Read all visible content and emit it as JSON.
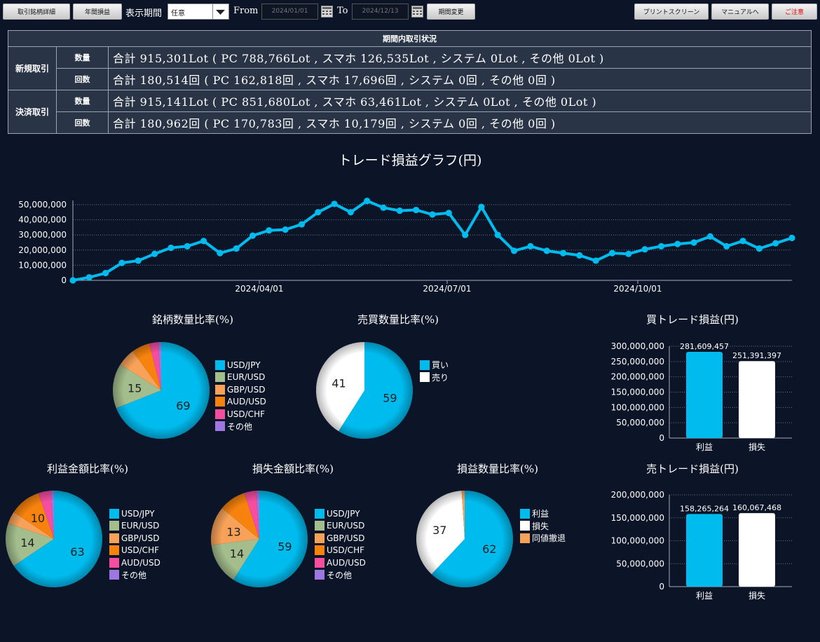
{
  "toolbar": {
    "detail_button": "取引銘柄詳細",
    "annual_button": "年間損益",
    "period_label": "表示期間",
    "period_select": "任意",
    "from_label": "From",
    "from_date": "2024/01/01",
    "to_label": "To",
    "to_date": "2024/12/13",
    "change_button": "期間変更",
    "print_button": "プリントスクリーン",
    "manual_button": "マニュアルへ",
    "notice_button": "ご注意"
  },
  "summary": {
    "title": "期間内取引状況",
    "rows": [
      {
        "group": "新規取引",
        "sub": "数量",
        "text": "合計 915,301Lot ( PC 788,766Lot , スマホ 126,535Lot , システム 0Lot , その他 0Lot )"
      },
      {
        "group": "新規取引",
        "sub": "回数",
        "text": "合計 180,514回 ( PC 162,818回 , スマホ 17,696回 , システム 0回 , その他 0回 )"
      },
      {
        "group": "決済取引",
        "sub": "数量",
        "text": "合計 915,141Lot ( PC 851,680Lot , スマホ 63,461Lot , システム 0Lot , その他 0Lot )"
      },
      {
        "group": "決済取引",
        "sub": "回数",
        "text": "合計 180,962回 ( PC 170,783回 , スマホ 10,179回 , システム 0回 , その他 0回 )"
      }
    ]
  },
  "colors": {
    "cyan": "#00bbee",
    "green": "#a3bd8c",
    "orange": "#f7a258",
    "darkorange": "#f7830e",
    "pink": "#f54ea0",
    "purple": "#9f77e0",
    "white": "#ffffff"
  },
  "chart_data": [
    {
      "id": "line",
      "type": "line",
      "title": "トレード損益グラフ(円)",
      "ylim": [
        0,
        50000000
      ],
      "yticks": [
        "0",
        "10,000,000",
        "20,000,000",
        "30,000,000",
        "40,000,000",
        "50,000,000"
      ],
      "xlabels": [
        "2024/04/01",
        "2024/07/01",
        "2024/10/01"
      ],
      "values": [
        0,
        2000000,
        4800000,
        11500000,
        13000000,
        17500000,
        21500000,
        22500000,
        26000000,
        18000000,
        21000000,
        29500000,
        33000000,
        33500000,
        37000000,
        45000000,
        50500000,
        45000000,
        52500000,
        48000000,
        46000000,
        46500000,
        43500000,
        44500000,
        30000000,
        48500000,
        30000000,
        19500000,
        22500000,
        19500000,
        18000000,
        16500000,
        13000000,
        18000000,
        17500000,
        20500000,
        22500000,
        24000000,
        25000000,
        29000000,
        22500000,
        26000000,
        21000000,
        24500000,
        28000000
      ]
    },
    {
      "id": "pie_symbol_qty",
      "type": "pie",
      "title": "銘柄数量比率(%)",
      "labels": [
        "USD/JPY",
        "EUR/USD",
        "GBP/USD",
        "AUD/USD",
        "USD/CHF",
        "その他"
      ],
      "values": [
        69,
        15,
        6,
        6,
        3,
        1
      ],
      "shown_labels": [
        "69",
        "15",
        "",
        "",
        "",
        ""
      ],
      "colors": [
        "#00bbee",
        "#a3bd8c",
        "#f7a258",
        "#f7830e",
        "#f54ea0",
        "#9f77e0"
      ]
    },
    {
      "id": "pie_buysell_qty",
      "type": "pie",
      "title": "売買数量比率(%)",
      "labels": [
        "買い",
        "売り"
      ],
      "values": [
        59,
        41
      ],
      "shown_labels": [
        "59",
        "41"
      ],
      "colors": [
        "#00bbee",
        "#ffffff"
      ]
    },
    {
      "id": "bar_buy",
      "type": "bar",
      "title": "買トレード損益(円)",
      "categories": [
        "利益",
        "損失"
      ],
      "values": [
        281609457,
        251391397
      ],
      "value_labels": [
        "281,609,457",
        "251,391,397"
      ],
      "ylim": [
        0,
        300000000
      ],
      "yticks": [
        "0",
        "50,000,000",
        "100,000,000",
        "150,000,000",
        "200,000,000",
        "250,000,000",
        "300,000,000"
      ],
      "colors": [
        "#00bbee",
        "#ffffff"
      ]
    },
    {
      "id": "pie_profit_amount",
      "type": "pie",
      "title": "利益金額比率(%)",
      "labels": [
        "USD/JPY",
        "EUR/USD",
        "GBP/USD",
        "USD/CHF",
        "AUD/USD",
        "その他"
      ],
      "values": [
        63,
        14,
        4,
        10,
        4,
        1
      ],
      "shown_labels": [
        "63",
        "14",
        "",
        "10",
        "",
        ""
      ],
      "colors": [
        "#00bbee",
        "#a3bd8c",
        "#f7a258",
        "#f7830e",
        "#f54ea0",
        "#9f77e0"
      ]
    },
    {
      "id": "pie_loss_amount",
      "type": "pie",
      "title": "損失金額比率(%)",
      "labels": [
        "USD/JPY",
        "EUR/USD",
        "GBP/USD",
        "USD/CHF",
        "AUD/USD",
        "その他"
      ],
      "values": [
        59,
        14,
        13,
        9,
        4,
        1
      ],
      "shown_labels": [
        "59",
        "14",
        "13",
        "",
        "",
        ""
      ],
      "colors": [
        "#00bbee",
        "#a3bd8c",
        "#f7a258",
        "#f7830e",
        "#f54ea0",
        "#9f77e0"
      ]
    },
    {
      "id": "pie_pl_count",
      "type": "pie",
      "title": "損益数量比率(%)",
      "labels": [
        "利益",
        "損失",
        "同値撤退"
      ],
      "values": [
        62,
        37,
        1
      ],
      "shown_labels": [
        "62",
        "37",
        ""
      ],
      "colors": [
        "#00bbee",
        "#ffffff",
        "#f7a258"
      ]
    },
    {
      "id": "bar_sell",
      "type": "bar",
      "title": "売トレード損益(円)",
      "categories": [
        "利益",
        "損失"
      ],
      "values": [
        158265264,
        160067468
      ],
      "value_labels": [
        "158,265,264",
        "160,067,468"
      ],
      "ylim": [
        0,
        200000000
      ],
      "yticks": [
        "0",
        "50,000,000",
        "100,000,000",
        "150,000,000",
        "200,000,000"
      ],
      "colors": [
        "#00bbee",
        "#ffffff"
      ]
    }
  ]
}
